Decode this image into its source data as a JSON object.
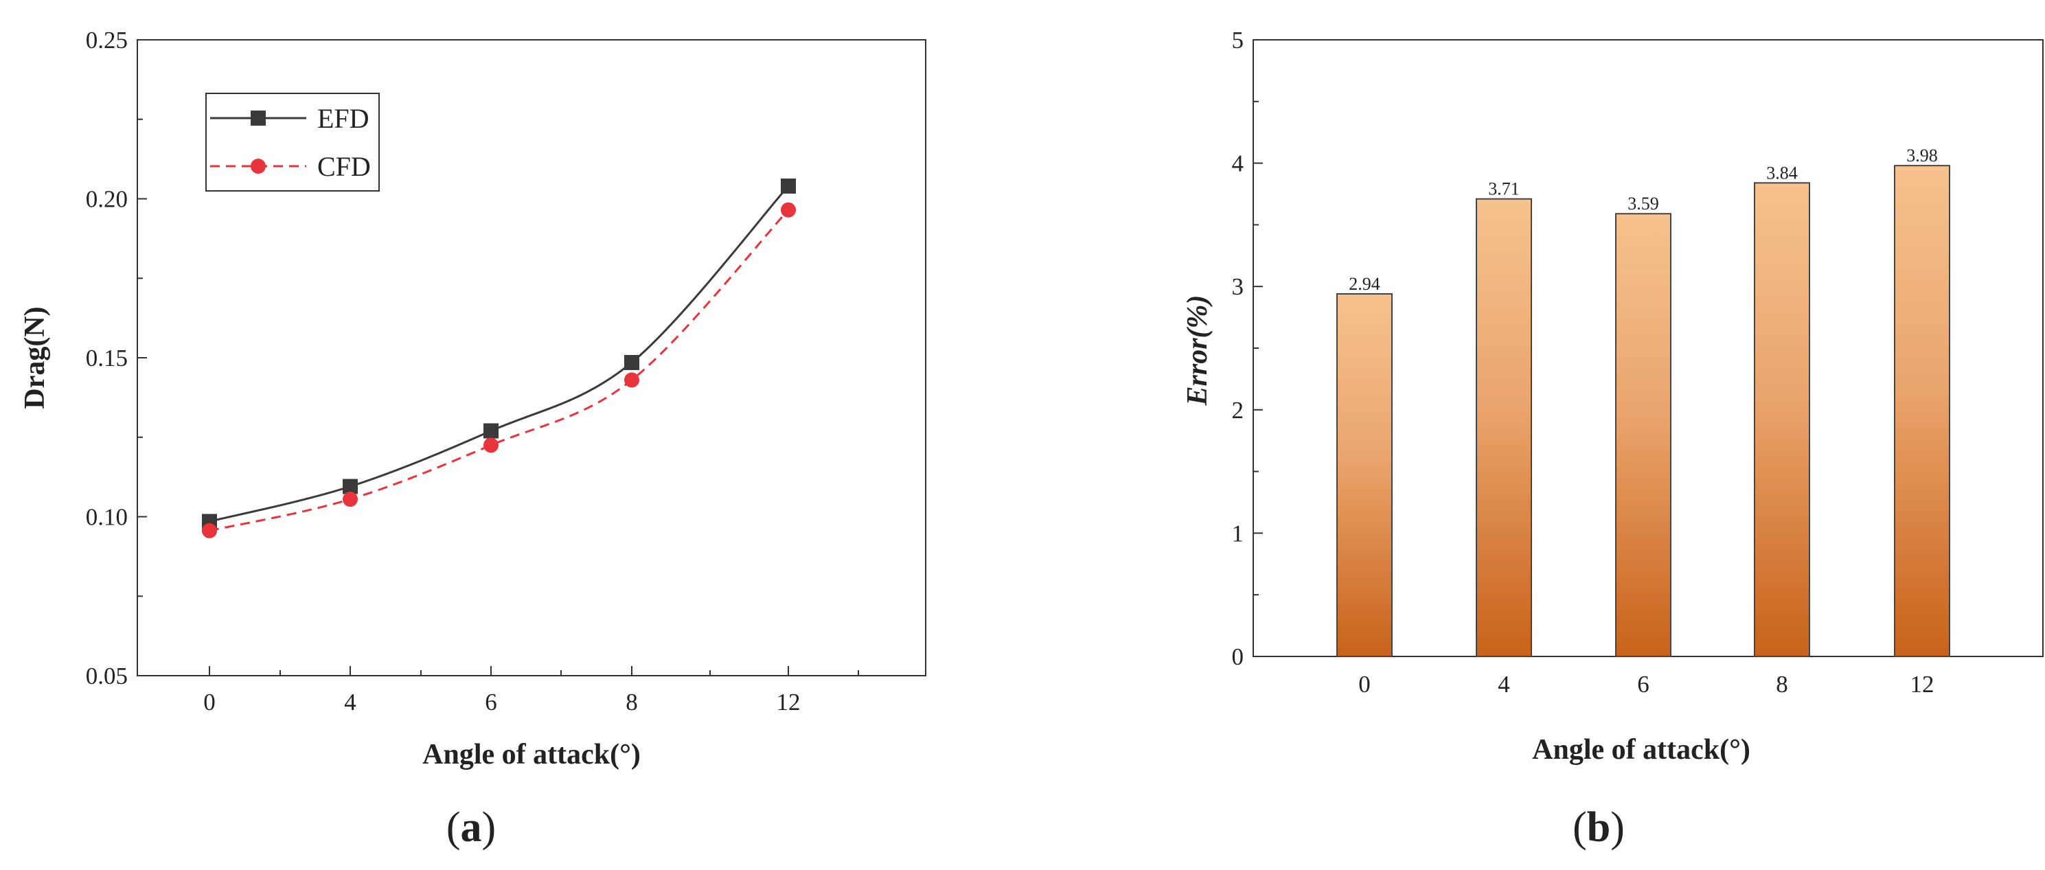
{
  "chart_data": [
    {
      "panel": "a",
      "type": "line",
      "xlabel": "Angle of attack(°)",
      "ylabel": "Drag(N)",
      "categories": [
        "0",
        "4",
        "6",
        "8",
        "12"
      ],
      "ylim": [
        0.05,
        0.25
      ],
      "yticks": [
        "0.05",
        "0.10",
        "0.15",
        "0.20",
        "0.25"
      ],
      "series": [
        {
          "name": "EFD",
          "values": [
            0.0985,
            0.1095,
            0.127,
            0.1485,
            0.204
          ],
          "color": "#3a3a3a",
          "marker": "square",
          "line": "solid"
        },
        {
          "name": "CFD",
          "values": [
            0.0956,
            0.1055,
            0.1225,
            0.143,
            0.1965
          ],
          "color": "#e8343a",
          "marker": "circle",
          "line": "dashed"
        }
      ],
      "legend_position": "top-left",
      "grid": false
    },
    {
      "panel": "b",
      "type": "bar",
      "xlabel": "Angle of attack(°)",
      "ylabel": "Error(%)",
      "categories": [
        "0",
        "4",
        "6",
        "8",
        "12"
      ],
      "values": [
        2.94,
        3.71,
        3.59,
        3.84,
        3.98
      ],
      "data_labels": [
        "2.94",
        "3.71",
        "3.59",
        "3.84",
        "3.98"
      ],
      "ylim": [
        0,
        5
      ],
      "yticks": [
        "0",
        "1",
        "2",
        "3",
        "4",
        "5"
      ],
      "bar_gradient": [
        "#f6c28e",
        "#c8621a"
      ],
      "grid": false
    }
  ],
  "panel_labels": {
    "a": "a",
    "b": "b"
  }
}
